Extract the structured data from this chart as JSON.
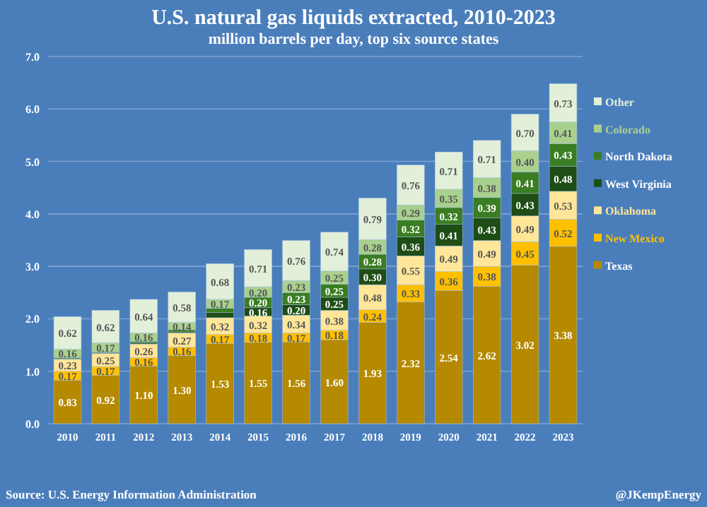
{
  "chart_data": {
    "type": "bar",
    "stacked": true,
    "title": "U.S. natural gas liquids extracted, 2010-2023",
    "subtitle": "million barrels per day, top six source states",
    "categories": [
      "2010",
      "2011",
      "2012",
      "2013",
      "2014",
      "2015",
      "2016",
      "2017",
      "2018",
      "2019",
      "2020",
      "2021",
      "2022",
      "2023"
    ],
    "series": [
      {
        "name": "Texas",
        "color": "#b58a00",
        "values": [
          0.83,
          0.92,
          1.1,
          1.3,
          1.53,
          1.55,
          1.56,
          1.6,
          1.93,
          2.32,
          2.54,
          2.62,
          3.02,
          3.38
        ],
        "value_labels": [
          "0.83",
          "0.92",
          "1.10",
          "1.30",
          "1.53",
          "1.55",
          "1.56",
          "1.60",
          "1.93",
          "2.32",
          "2.54",
          "2.62",
          "3.02",
          "3.38"
        ]
      },
      {
        "name": "New Mexico",
        "color": "#ffc000",
        "values": [
          0.17,
          0.17,
          0.16,
          0.16,
          0.17,
          0.18,
          0.17,
          0.18,
          0.24,
          0.33,
          0.36,
          0.38,
          0.45,
          0.52
        ],
        "value_labels": [
          "0.17",
          "0.17",
          "0.16",
          "0.16",
          "0.17",
          "0.18",
          "0.17",
          "0.18",
          "0.24",
          "0.33",
          "0.36",
          "0.38",
          "0.45",
          "0.52"
        ]
      },
      {
        "name": "Oklahoma",
        "color": "#ffe699",
        "values": [
          0.23,
          0.25,
          0.26,
          0.27,
          0.32,
          0.32,
          0.34,
          0.38,
          0.48,
          0.55,
          0.49,
          0.49,
          0.49,
          0.53
        ],
        "value_labels": [
          "0.23",
          "0.25",
          "0.26",
          "0.27",
          "0.32",
          "0.32",
          "0.34",
          "0.38",
          "0.48",
          "0.55",
          "0.49",
          "0.49",
          "0.49",
          "0.53"
        ]
      },
      {
        "name": "West Virginia",
        "color": "#1e4d16",
        "values": [
          0.01,
          0.01,
          0.02,
          0.02,
          0.1,
          0.16,
          0.2,
          0.25,
          0.3,
          0.36,
          0.41,
          0.43,
          0.43,
          0.48
        ],
        "value_labels": [
          null,
          null,
          null,
          null,
          null,
          "0.16",
          "0.20",
          "0.25",
          "0.30",
          "0.36",
          "0.41",
          "0.43",
          "0.43",
          "0.48"
        ]
      },
      {
        "name": "North Dakota",
        "color": "#3a7d22",
        "values": [
          0.02,
          0.02,
          0.03,
          0.04,
          0.08,
          0.2,
          0.23,
          0.25,
          0.28,
          0.32,
          0.32,
          0.39,
          0.41,
          0.43
        ],
        "value_labels": [
          null,
          null,
          null,
          null,
          null,
          "0.20",
          "0.23",
          "0.25",
          "0.28",
          "0.32",
          "0.32",
          "0.39",
          "0.41",
          "0.43"
        ]
      },
      {
        "name": "Colorado",
        "color": "#a9d18e",
        "values": [
          0.16,
          0.17,
          0.16,
          0.14,
          0.17,
          0.2,
          0.23,
          0.25,
          0.28,
          0.29,
          0.35,
          0.38,
          0.4,
          0.41
        ],
        "value_labels": [
          "0.16",
          "0.17",
          "0.16",
          "0.14",
          "0.17",
          "0.20",
          "0.23",
          "0.25",
          "0.28",
          "0.29",
          "0.35",
          "0.38",
          "0.40",
          "0.41"
        ]
      },
      {
        "name": "Other",
        "color": "#e2f0d9",
        "values": [
          0.62,
          0.62,
          0.64,
          0.58,
          0.68,
          0.71,
          0.76,
          0.74,
          0.79,
          0.76,
          0.71,
          0.71,
          0.7,
          0.73
        ],
        "value_labels": [
          "0.62",
          "0.62",
          "0.64",
          "0.58",
          "0.68",
          "0.71",
          "0.76",
          "0.74",
          "0.79",
          "0.76",
          "0.71",
          "0.71",
          "0.70",
          "0.73"
        ]
      }
    ],
    "ylim": [
      0,
      7
    ],
    "yticks": [
      {
        "value": 0,
        "label": "0.0"
      },
      {
        "value": 1,
        "label": "1.0"
      },
      {
        "value": 2,
        "label": "2.0"
      },
      {
        "value": 3,
        "label": "3.0"
      },
      {
        "value": 4,
        "label": "4.0"
      },
      {
        "value": 5,
        "label": "5.0"
      },
      {
        "value": 6,
        "label": "6.0"
      },
      {
        "value": 7,
        "label": "7.0"
      }
    ],
    "grid": "y",
    "legend": "right",
    "annotations": [
      "Source: U.S. Energy Information Administration",
      "@JKempEnergy"
    ]
  }
}
